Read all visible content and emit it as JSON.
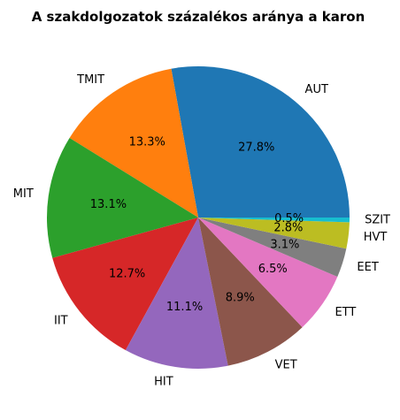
{
  "chart_data": {
    "type": "pie",
    "title": "A szakdolgozatok százalékos aránya a karon",
    "categories": [
      "AUT",
      "TMIT",
      "MIT",
      "IIT",
      "HIT",
      "VET",
      "ETT",
      "EET",
      "HVT",
      "SZIT"
    ],
    "values": [
      27.8,
      13.3,
      13.1,
      12.7,
      11.1,
      8.9,
      6.5,
      3.1,
      2.8,
      0.5
    ],
    "value_labels": [
      "27.8%",
      "13.3%",
      "13.1%",
      "12.7%",
      "11.1%",
      "8.9%",
      "6.5%",
      "3.1%",
      "2.8%",
      "0.5%"
    ],
    "colors": [
      "#1f77b4",
      "#ff7f0e",
      "#2ca02c",
      "#d62728",
      "#9467bd",
      "#8c564b",
      "#e377c2",
      "#7f7f7f",
      "#bcbd22",
      "#17becf"
    ],
    "start_angle_deg": 0,
    "direction": "counterclockwise",
    "legend": "none"
  }
}
